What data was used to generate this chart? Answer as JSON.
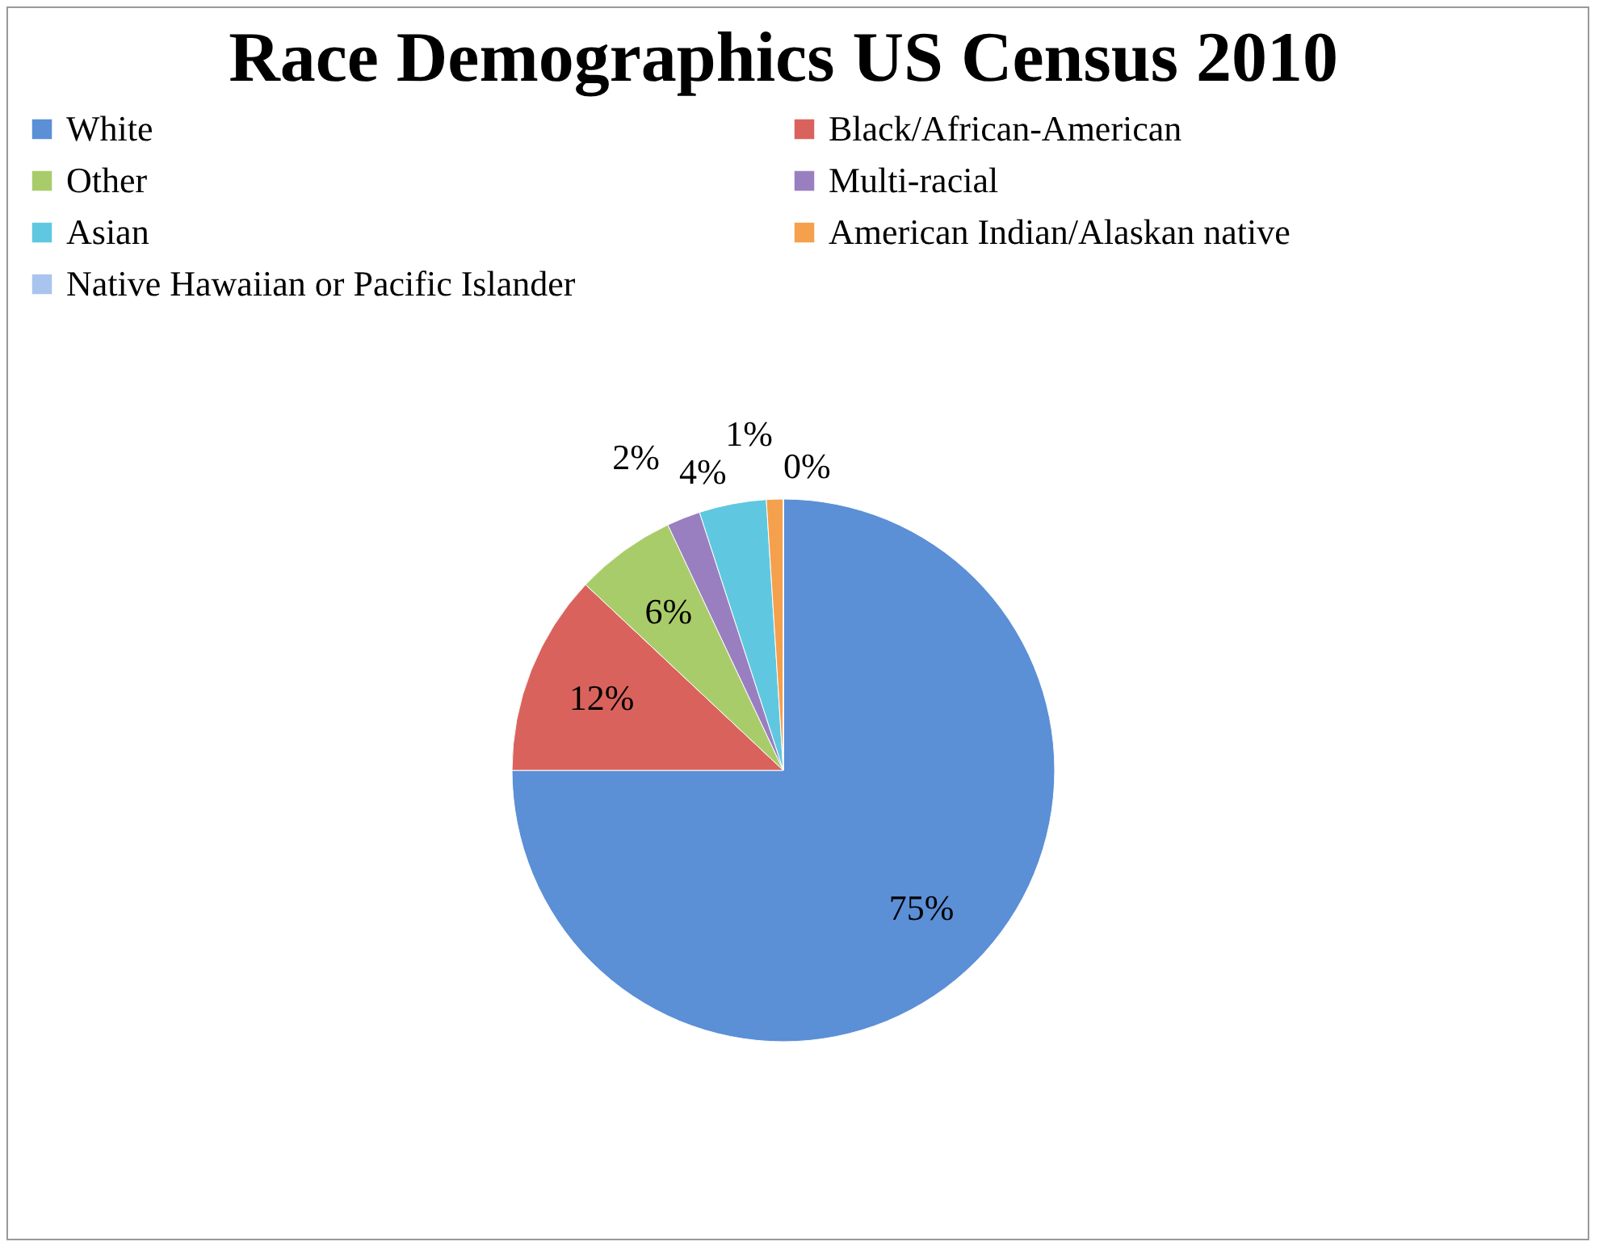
{
  "chart_data": {
    "type": "pie",
    "title": "Race Demographics  US Census 2010",
    "categories": [
      "White",
      "Black/African-American",
      "Other",
      "Multi-racial",
      "Asian",
      "American Indian/Alaskan native",
      "Native Hawaiian or Pacific Islander"
    ],
    "values": [
      75,
      12,
      6,
      2,
      4,
      1,
      0
    ],
    "value_labels": [
      "75%",
      "12%",
      "6%",
      "2%",
      "4%",
      "1%",
      "0%"
    ],
    "colors": [
      "#5b8fd6",
      "#d9635c",
      "#a9cc6a",
      "#9a7fc0",
      "#5fc8e0",
      "#f5a04d",
      "#a9c4ee"
    ],
    "legend": "top"
  }
}
